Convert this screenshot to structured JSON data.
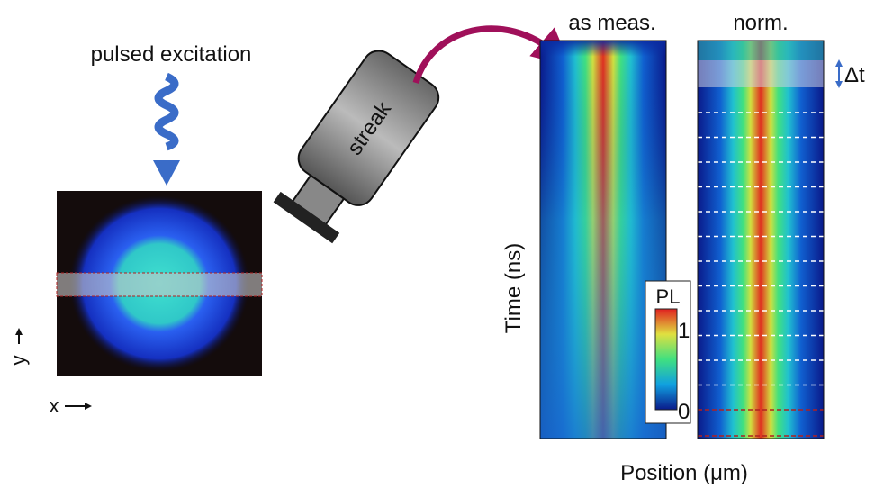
{
  "excitation": {
    "label": "pulsed excitation"
  },
  "sample": {
    "x_axis": "x",
    "y_axis": "y"
  },
  "camera": {
    "label": "streak"
  },
  "panels": [
    {
      "title": "as meas."
    },
    {
      "title": "norm."
    }
  ],
  "interval": {
    "label": "Δt"
  },
  "colorbar": {
    "label": "PL",
    "max": "1",
    "min": "0"
  },
  "axes": {
    "y_label": "Time (ns)",
    "x_label": "Position (μm)"
  }
}
